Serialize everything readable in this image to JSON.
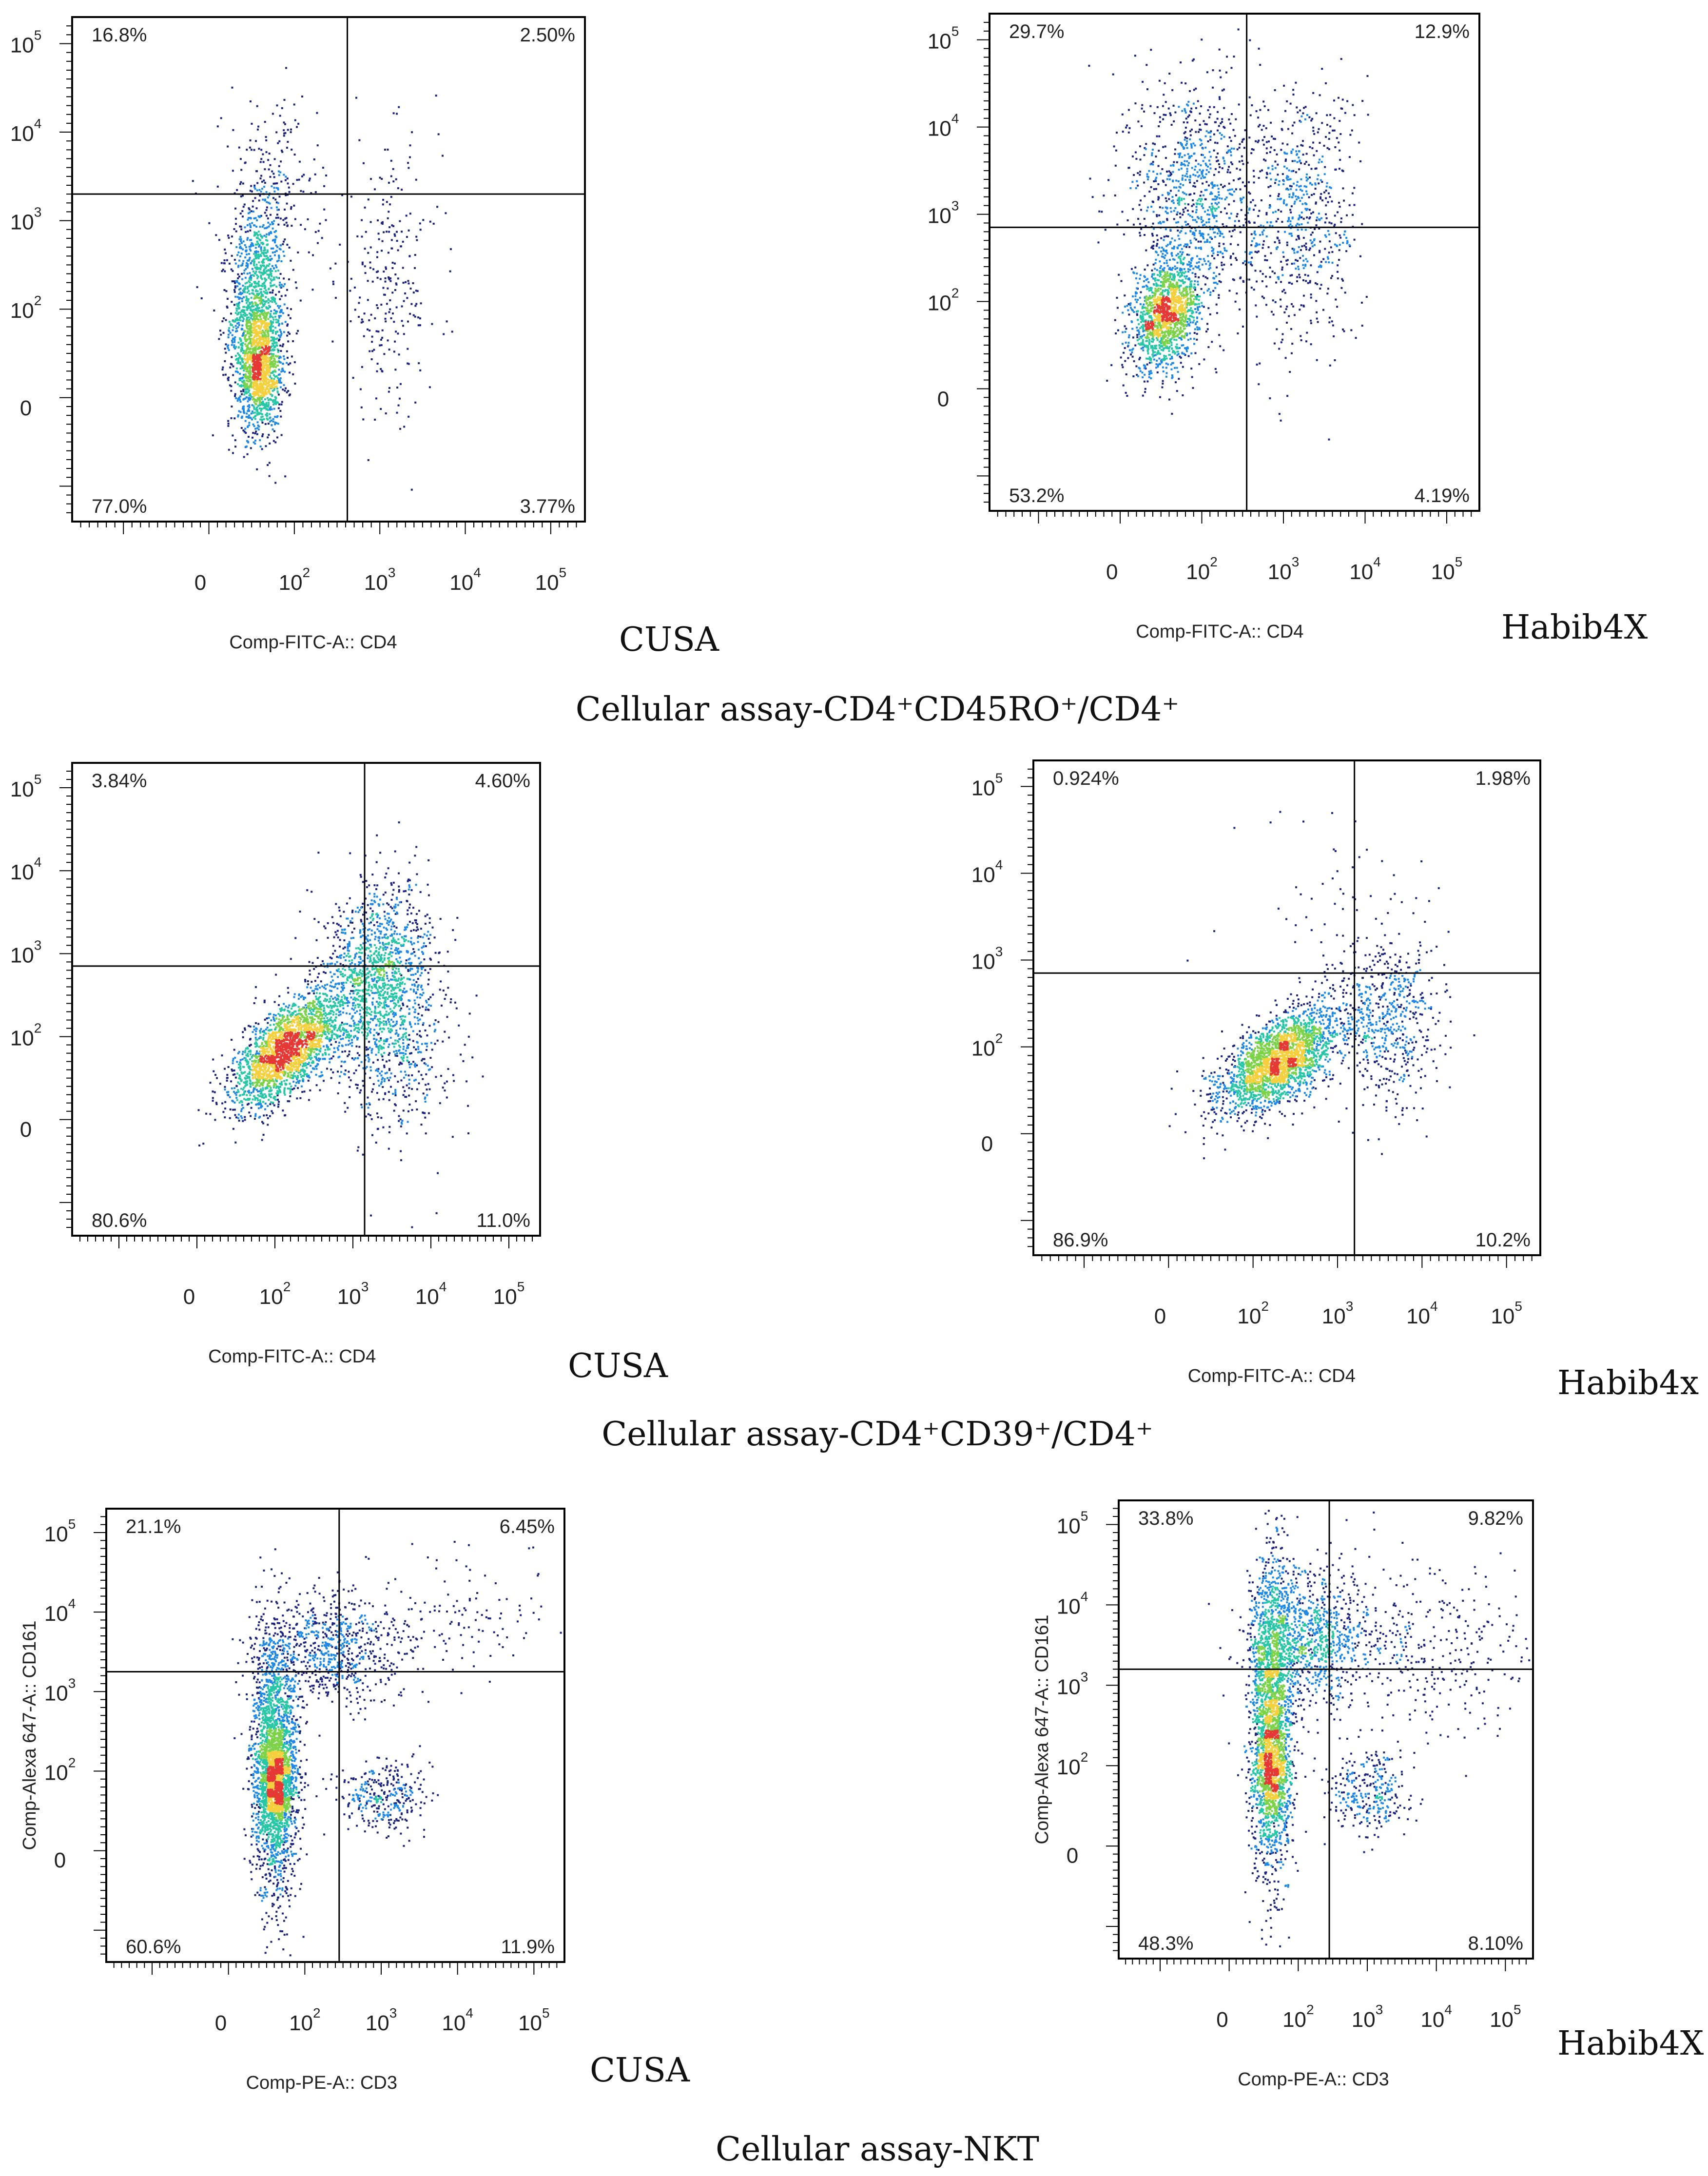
{
  "colors": {
    "density_low": "#1a237e",
    "density_mid1": "#1e88e5",
    "density_mid2": "#26c6a6",
    "density_mid3": "#7cd34a",
    "density_high1": "#f4d03f",
    "density_high2": "#e53935"
  },
  "sections": [
    {
      "title": "Cellular assay-CD4⁺CD45RO⁺/CD4⁺"
    },
    {
      "title": "Cellular assay-CD4⁺CD39⁺/CD4⁺"
    },
    {
      "title": "Cellular assay-NKT"
    }
  ],
  "chart_data": [
    {
      "type": "scatter",
      "subtype": "flow-cytometry-density-dot-plot",
      "caption": "CUSA",
      "xlabel": "Comp-FITC-A:: CD4",
      "ylabel": "",
      "x_ticks": [
        "0",
        "10",
        "10",
        "10",
        "10"
      ],
      "x_tick_exponents": [
        "",
        "2",
        "3",
        "4",
        "5"
      ],
      "y_ticks": [
        "0",
        "10",
        "10",
        "10",
        "10"
      ],
      "y_tick_exponents": [
        "",
        "2",
        "3",
        "4",
        "5"
      ],
      "xlim_log10": [
        -0.6,
        5.4
      ],
      "ylim_log10": [
        -0.4,
        5.3
      ],
      "gate_x_log10": 2.62,
      "gate_y_log10": 3.3,
      "quadrants": {
        "upper_left": "16.8%",
        "upper_right": "2.50%",
        "lower_left": "77.0%",
        "lower_right": "3.77%"
      },
      "populations": [
        {
          "cx": 1.55,
          "cy": 1.85,
          "sx": 0.16,
          "sy": 0.6,
          "rho": 0,
          "n": 1500
        },
        {
          "cx": 1.6,
          "cy": 1.3,
          "sx": 0.13,
          "sy": 0.3,
          "rho": 0,
          "n": 800
        },
        {
          "cx": 1.7,
          "cy": 3.2,
          "sx": 0.28,
          "sy": 0.55,
          "rho": 0,
          "n": 300
        },
        {
          "cx": 3.1,
          "cy": 2.3,
          "sx": 0.3,
          "sy": 0.75,
          "rho": 0,
          "n": 260
        }
      ]
    },
    {
      "type": "scatter",
      "subtype": "flow-cytometry-density-dot-plot",
      "caption": "Habib4X",
      "xlabel": "Comp-FITC-A:: CD4",
      "ylabel": "",
      "x_ticks": [
        "0",
        "10",
        "10",
        "10",
        "10"
      ],
      "x_tick_exponents": [
        "",
        "2",
        "3",
        "4",
        "5"
      ],
      "y_ticks": [
        "0",
        "10",
        "10",
        "10",
        "10"
      ],
      "y_tick_exponents": [
        "",
        "2",
        "3",
        "4",
        "5"
      ],
      "xlim_log10": [
        -0.6,
        5.4
      ],
      "ylim_log10": [
        -0.4,
        5.3
      ],
      "gate_x_log10": 2.55,
      "gate_y_log10": 2.85,
      "quadrants": {
        "upper_left": "29.7%",
        "upper_right": "12.9%",
        "lower_left": "53.2%",
        "lower_right": "4.19%"
      },
      "populations": [
        {
          "cx": 1.55,
          "cy": 1.85,
          "sx": 0.2,
          "sy": 0.3,
          "rho": 0.3,
          "n": 1500
        },
        {
          "cx": 1.9,
          "cy": 3.2,
          "sx": 0.4,
          "sy": 0.7,
          "rho": 0,
          "n": 1000
        },
        {
          "cx": 3.2,
          "cy": 3.0,
          "sx": 0.35,
          "sy": 0.75,
          "rho": 0,
          "n": 650
        }
      ]
    },
    {
      "type": "scatter",
      "subtype": "flow-cytometry-density-dot-plot",
      "caption": "CUSA",
      "xlabel": "Comp-FITC-A:: CD4",
      "ylabel": "",
      "x_ticks": [
        "0",
        "10",
        "10",
        "10",
        "10"
      ],
      "x_tick_exponents": [
        "",
        "2",
        "3",
        "4",
        "5"
      ],
      "y_ticks": [
        "0",
        "10",
        "10",
        "10",
        "10"
      ],
      "y_tick_exponents": [
        "",
        "2",
        "3",
        "4",
        "5"
      ],
      "xlim_log10": [
        -0.6,
        5.4
      ],
      "ylim_log10": [
        -0.4,
        5.3
      ],
      "gate_x_log10": 3.15,
      "gate_y_log10": 2.85,
      "quadrants": {
        "upper_left": "3.84%",
        "upper_right": "4.60%",
        "lower_left": "80.6%",
        "lower_right": "11.0%"
      },
      "populations": [
        {
          "cx": 2.15,
          "cy": 1.85,
          "sx": 0.35,
          "sy": 0.35,
          "rho": 0.65,
          "n": 2300
        },
        {
          "cx": 3.3,
          "cy": 2.75,
          "sx": 0.35,
          "sy": 0.55,
          "rho": 0.2,
          "n": 1300
        },
        {
          "cx": 3.6,
          "cy": 1.9,
          "sx": 0.35,
          "sy": 0.55,
          "rho": 0,
          "n": 450
        }
      ]
    },
    {
      "type": "scatter",
      "subtype": "flow-cytometry-density-dot-plot",
      "caption": "Habib4x",
      "xlabel": "Comp-FITC-A:: CD4",
      "ylabel": "",
      "x_ticks": [
        "0",
        "10",
        "10",
        "10",
        "10"
      ],
      "x_tick_exponents": [
        "",
        "2",
        "3",
        "4",
        "5"
      ],
      "y_ticks": [
        "0",
        "10",
        "10",
        "10",
        "10"
      ],
      "y_tick_exponents": [
        "",
        "2",
        "3",
        "4",
        "5"
      ],
      "xlim_log10": [
        -0.6,
        5.4
      ],
      "ylim_log10": [
        -0.4,
        5.3
      ],
      "gate_x_log10": 3.2,
      "gate_y_log10": 2.85,
      "quadrants": {
        "upper_left": "0.924%",
        "upper_right": "1.98%",
        "lower_left": "86.9%",
        "lower_right": "10.2%"
      },
      "populations": [
        {
          "cx": 2.3,
          "cy": 1.85,
          "sx": 0.35,
          "sy": 0.3,
          "rho": 0.6,
          "n": 2400
        },
        {
          "cx": 3.6,
          "cy": 2.3,
          "sx": 0.3,
          "sy": 0.5,
          "rho": 0,
          "n": 600
        },
        {
          "cx": 3.0,
          "cy": 3.5,
          "sx": 0.6,
          "sy": 0.6,
          "rho": 0,
          "n": 60
        }
      ]
    },
    {
      "type": "scatter",
      "subtype": "flow-cytometry-density-dot-plot",
      "caption": "CUSA",
      "xlabel": "Comp-PE-A:: CD3",
      "ylabel": "Comp-Alexa 647-A:: CD161",
      "x_ticks": [
        "0",
        "10",
        "10",
        "10",
        "10"
      ],
      "x_tick_exponents": [
        "",
        "2",
        "3",
        "4",
        "5"
      ],
      "y_ticks": [
        "0",
        "10",
        "10",
        "10",
        "10"
      ],
      "y_tick_exponents": [
        "",
        "2",
        "3",
        "4",
        "5"
      ],
      "xlim_log10": [
        -0.6,
        5.4
      ],
      "ylim_log10": [
        -0.4,
        5.3
      ],
      "gate_x_log10": 2.45,
      "gate_y_log10": 3.25,
      "quadrants": {
        "upper_left": "21.1%",
        "upper_right": "6.45%",
        "lower_left": "60.6%",
        "lower_right": "11.9%"
      },
      "populations": [
        {
          "cx": 1.6,
          "cy": 2.1,
          "sx": 0.15,
          "sy": 0.8,
          "rho": 0,
          "n": 2200
        },
        {
          "cx": 1.6,
          "cy": 1.9,
          "sx": 0.12,
          "sy": 0.3,
          "rho": 0,
          "n": 800
        },
        {
          "cx": 2.3,
          "cy": 3.55,
          "sx": 0.45,
          "sy": 0.35,
          "rho": 0,
          "n": 700
        },
        {
          "cx": 3.0,
          "cy": 1.7,
          "sx": 0.28,
          "sy": 0.22,
          "rho": 0,
          "n": 320
        },
        {
          "cx": 3.8,
          "cy": 3.9,
          "sx": 0.8,
          "sy": 0.45,
          "rho": 0.2,
          "n": 150
        }
      ]
    },
    {
      "type": "scatter",
      "subtype": "flow-cytometry-density-dot-plot",
      "caption": "Habib4X",
      "xlabel": "Comp-PE-A:: CD3",
      "ylabel": "Comp-Alexa 647-A:: CD161",
      "x_ticks": [
        "0",
        "10",
        "10",
        "10",
        "10"
      ],
      "x_tick_exponents": [
        "",
        "2",
        "3",
        "4",
        "5"
      ],
      "y_ticks": [
        "0",
        "10",
        "10",
        "10",
        "10"
      ],
      "y_tick_exponents": [
        "",
        "2",
        "3",
        "4",
        "5"
      ],
      "xlim_log10": [
        -0.6,
        5.4
      ],
      "ylim_log10": [
        -0.4,
        5.3
      ],
      "gate_x_log10": 2.45,
      "gate_y_log10": 3.2,
      "quadrants": {
        "upper_left": "33.8%",
        "upper_right": "9.82%",
        "lower_left": "48.3%",
        "lower_right": "8.10%"
      },
      "populations": [
        {
          "cx": 1.6,
          "cy": 2.6,
          "sx": 0.15,
          "sy": 1.0,
          "rho": 0,
          "n": 2200
        },
        {
          "cx": 1.6,
          "cy": 1.9,
          "sx": 0.12,
          "sy": 0.3,
          "rho": 0,
          "n": 600
        },
        {
          "cx": 2.2,
          "cy": 3.6,
          "sx": 0.45,
          "sy": 0.4,
          "rho": 0,
          "n": 900
        },
        {
          "cx": 3.0,
          "cy": 1.7,
          "sx": 0.3,
          "sy": 0.25,
          "rho": 0,
          "n": 300
        },
        {
          "cx": 3.8,
          "cy": 3.4,
          "sx": 0.8,
          "sy": 0.55,
          "rho": 0,
          "n": 350
        }
      ]
    }
  ]
}
